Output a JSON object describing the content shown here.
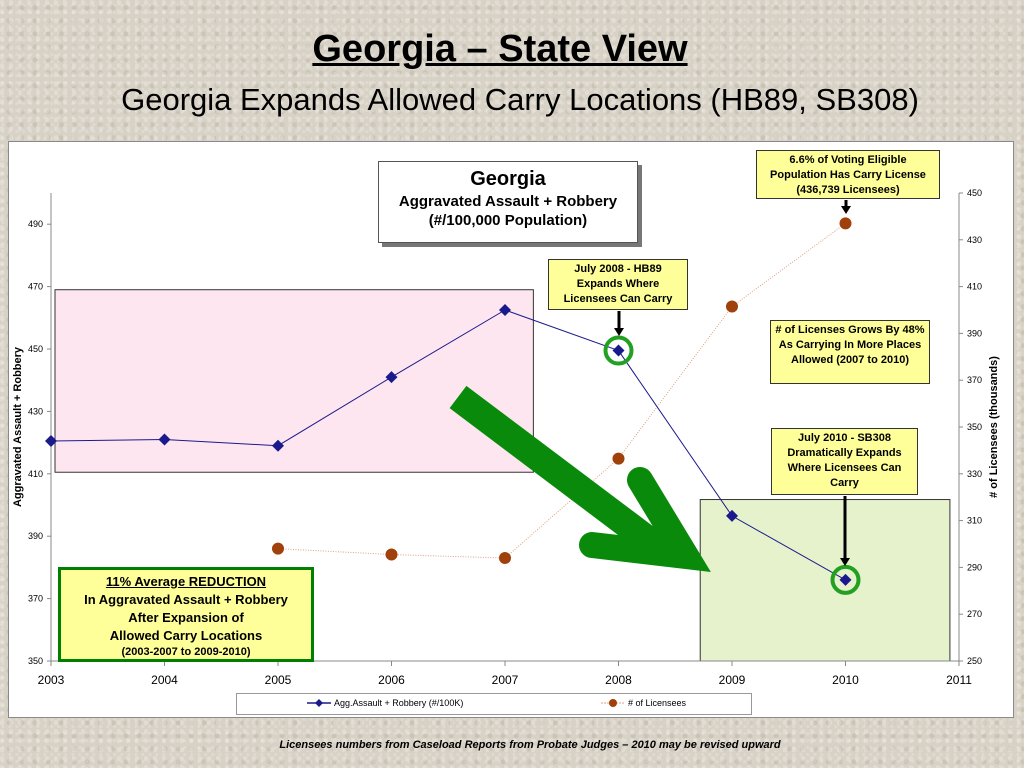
{
  "slide": {
    "title": "Georgia – State View",
    "subtitle": "Georgia Expands Allowed Carry Locations (HB89, SB308)",
    "footnote": "Licensees numbers from Caseload Reports from Probate Judges – 2010 may be revised upward"
  },
  "inset": {
    "line1": "Georgia",
    "line2": "Aggravated Assault + Robbery",
    "line3": "(#/100,000 Population)"
  },
  "callouts": {
    "c2010_license": "6.6% of Voting Eligible Population Has Carry License (436,739 Licensees)",
    "hb89": "July 2008 - HB89 Expands Where Licensees Can Carry",
    "growth": "# of Licenses Grows By 48% As Carrying In More Places Allowed (2007 to 2010)",
    "sb308": "July 2010 - SB308 Dramatically Expands Where Licensees Can Carry"
  },
  "reduction": {
    "line1": "11% Average REDUCTION",
    "line2": "In Aggravated Assault + Robbery",
    "line3": "After Expansion of",
    "line4": "Allowed Carry Locations",
    "line5": "(2003-2007 to 2009-2010)"
  },
  "colors": {
    "series1": "#1a1a8c",
    "series2": "#a0400a",
    "arrow": "#0a8a0a",
    "pink_box": "#fde6f0",
    "green_box": "#e6f2cc",
    "highlight_ring": "#22a022"
  },
  "chart_data": {
    "type": "line",
    "x_ticks": [
      "2003",
      "2004",
      "2005",
      "2006",
      "2007",
      "2008",
      "2009",
      "2010",
      "2011"
    ],
    "xlim": [
      2003,
      2011
    ],
    "ylabel": "Aggravated Assault + Robbery",
    "ylim": [
      350,
      500
    ],
    "y_ticks": [
      "490",
      "470",
      "450",
      "430",
      "410",
      "390",
      "370",
      "350"
    ],
    "y2label": "# of Licensees (thousands)",
    "y2lim": [
      250,
      450
    ],
    "y2_ticks": [
      "450",
      "430",
      "410",
      "390",
      "370",
      "350",
      "330",
      "310",
      "290",
      "270",
      "250"
    ],
    "grid": false,
    "legend_position": "bottom",
    "series": [
      {
        "name": "Agg.Assault + Robbery (#/100K)",
        "axis": "left",
        "marker": "diamond",
        "x": [
          2003,
          2004,
          2005,
          2006,
          2007,
          2008,
          2009,
          2010
        ],
        "values": [
          420.5,
          421,
          419,
          441,
          462.5,
          449.5,
          396.5,
          376
        ]
      },
      {
        "name": "# of Licensees",
        "axis": "right",
        "marker": "circle",
        "x": [
          2005,
          2006,
          2007,
          2008,
          2009,
          2010
        ],
        "values": [
          298,
          295.5,
          294,
          336.5,
          401.5,
          437
        ]
      }
    ]
  }
}
